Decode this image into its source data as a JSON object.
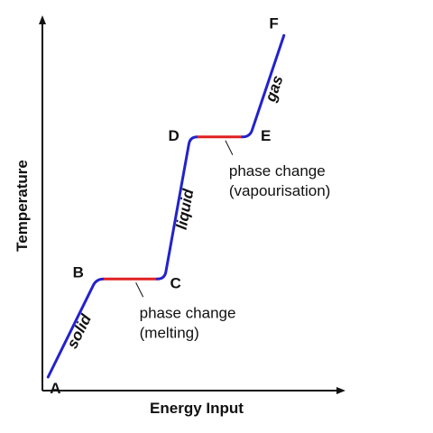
{
  "chart_data": {
    "type": "line",
    "title": "",
    "xlabel": "Energy Input",
    "ylabel": "Temperature",
    "grid": false,
    "legend": "none",
    "colors": {
      "axis": "#111111",
      "temperature_change": "#2222cc",
      "phase_change": "#e02020",
      "text": "#111111"
    },
    "points": [
      {
        "label": "A",
        "x": 0.2,
        "y": 0.4
      },
      {
        "label": "B",
        "x": 1.9,
        "y": 3.3
      },
      {
        "label": "C",
        "x": 4.3,
        "y": 3.3
      },
      {
        "label": "D",
        "x": 5.2,
        "y": 7.5
      },
      {
        "label": "E",
        "x": 7.3,
        "y": 7.5
      },
      {
        "label": "F",
        "x": 8.5,
        "y": 10.5
      }
    ],
    "segments": [
      {
        "from": "A",
        "to": "B",
        "kind": "temperature_change",
        "label": "solid"
      },
      {
        "from": "B",
        "to": "C",
        "kind": "phase_change",
        "note": [
          "phase change",
          "(melting)"
        ]
      },
      {
        "from": "C",
        "to": "D",
        "kind": "temperature_change",
        "label": "liquid"
      },
      {
        "from": "D",
        "to": "E",
        "kind": "phase_change",
        "note": [
          "phase change",
          "(vapourisation)"
        ]
      },
      {
        "from": "E",
        "to": "F",
        "kind": "temperature_change",
        "label": "gas"
      }
    ]
  }
}
